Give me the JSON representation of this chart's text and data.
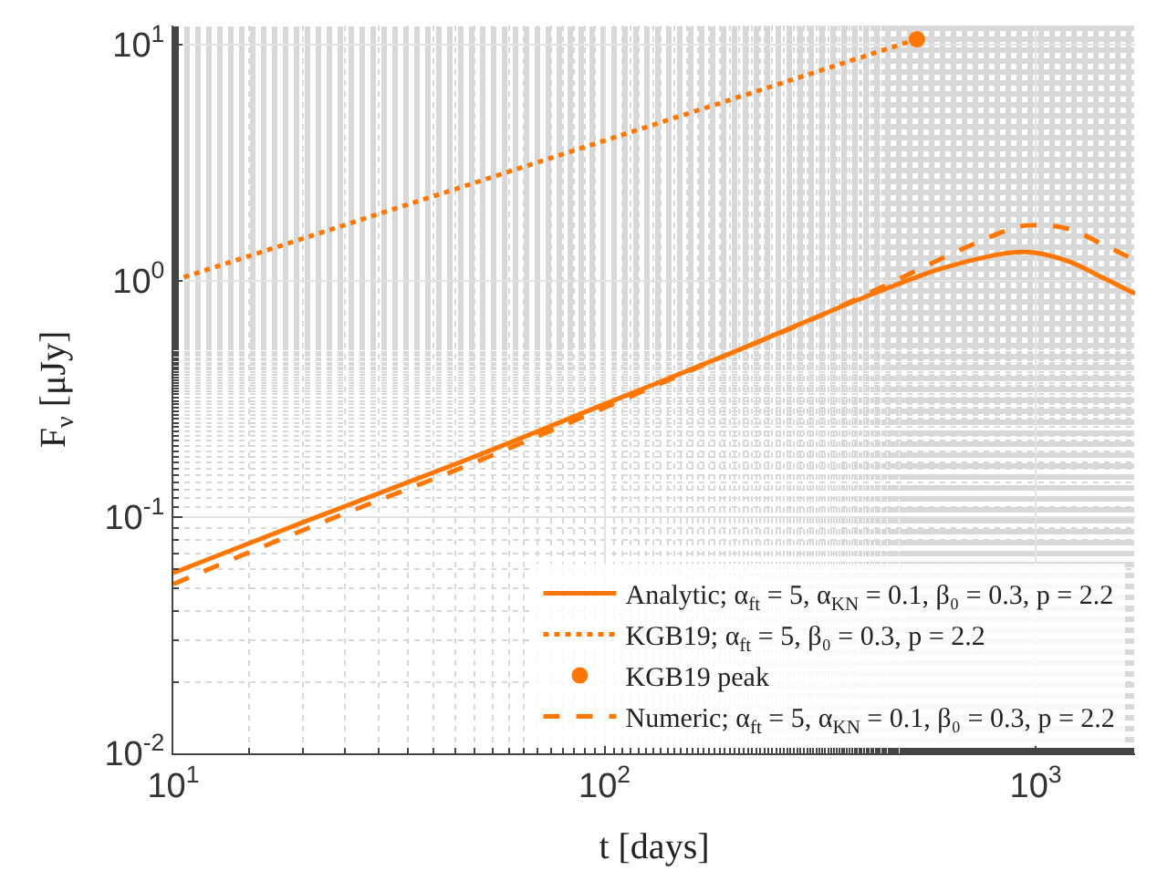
{
  "chart_data": {
    "type": "line",
    "xlabel": "t [days]",
    "ylabel": "F$_{ν}$ [μJy]",
    "log": "xy",
    "grid": true,
    "legend": "bottom right",
    "xlim": [
      10,
      1700
    ],
    "ylim": [
      0.01,
      12
    ],
    "xticks": [
      {
        "value": 10,
        "label": "10$^{1}$"
      },
      {
        "value": 100,
        "label": "10$^{2}$"
      },
      {
        "value": 1000,
        "label": "10$^{3}$"
      }
    ],
    "yticks": [
      {
        "value": 0.01,
        "label": "10$^{-2}$"
      },
      {
        "value": 0.1,
        "label": "10$^{-1}$"
      },
      {
        "value": 1,
        "label": "10$^{0}$"
      },
      {
        "value": 10,
        "label": "10$^{1}$"
      }
    ],
    "series": [
      {
        "name": "Analytic; α$_{ft}$ = 5, α$_{KN}$ = 0.1, β₀ = 0.3, p = 2.2",
        "color": "#ff7700",
        "line_style": "solid",
        "marker": "none",
        "x": [
          10,
          20,
          50,
          100,
          200,
          400,
          600,
          800,
          900,
          1000,
          1200,
          1400,
          1700
        ],
        "values": [
          0.058,
          0.095,
          0.18,
          0.3,
          0.5,
          0.85,
          1.12,
          1.28,
          1.32,
          1.31,
          1.2,
          1.05,
          0.88
        ]
      },
      {
        "name": "KGB19; α$_{ft}$ = 5, β₀ = 0.3, p = 2.2",
        "color": "#ff7700",
        "line_style": "dotted",
        "marker": "none",
        "x": [
          10,
          530
        ],
        "values": [
          1.0,
          10.5
        ]
      },
      {
        "name": "KGB19 peak",
        "type": "scatter",
        "color": "#ff7700",
        "marker": "circle",
        "x": [
          530
        ],
        "values": [
          10.5
        ]
      },
      {
        "name": "Numeric; α$_{ft}$ = 5, α$_{KN}$ = 0.1, β₀ = 0.3, p = 2.2",
        "color": "#ff7700",
        "line_style": "dashed",
        "marker": "none",
        "x": [
          10,
          20,
          50,
          100,
          200,
          300,
          500,
          700,
          900,
          1000,
          1200,
          1400,
          1700
        ],
        "values": [
          0.052,
          0.088,
          0.17,
          0.29,
          0.5,
          0.68,
          1.05,
          1.4,
          1.68,
          1.72,
          1.65,
          1.45,
          1.22
        ]
      }
    ]
  }
}
